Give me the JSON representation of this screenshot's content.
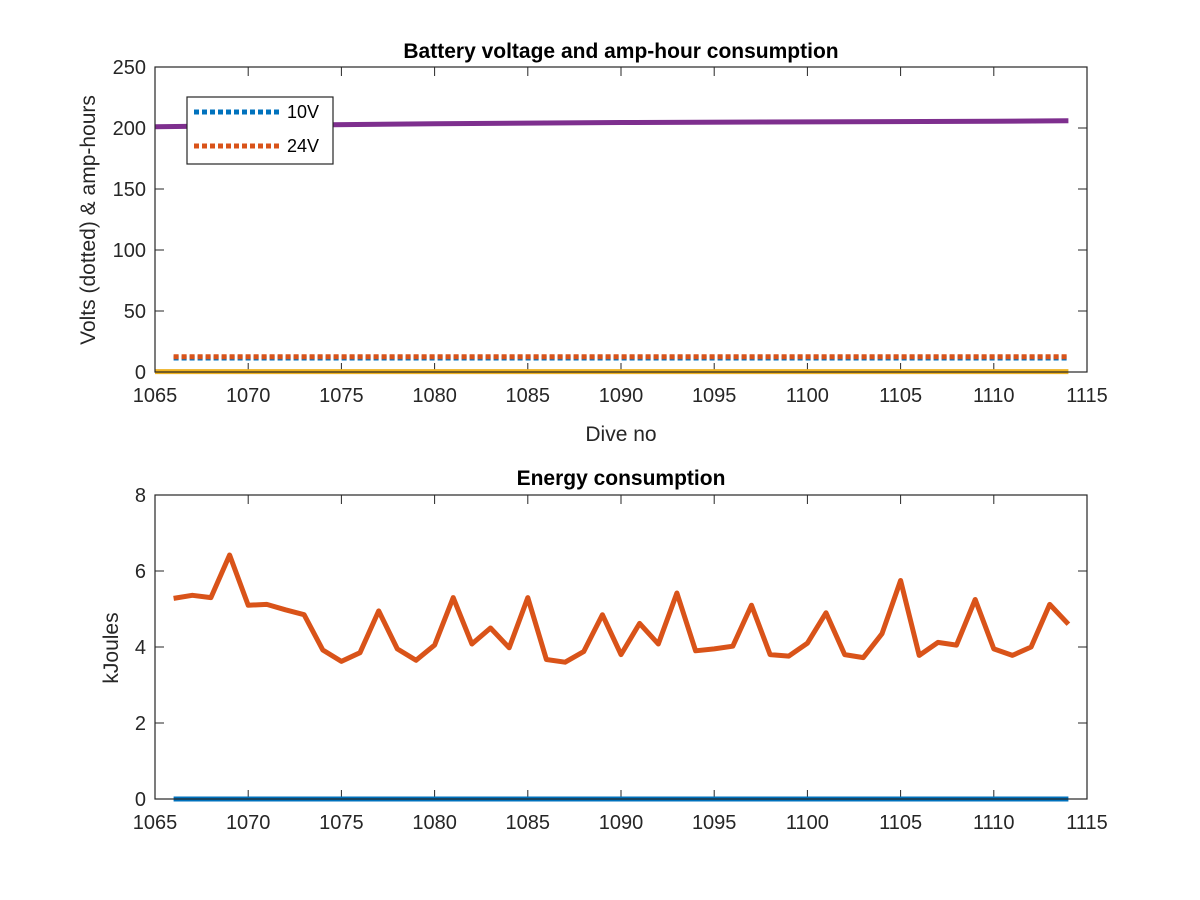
{
  "chart_data": [
    {
      "type": "line",
      "title": "Battery voltage and amp-hour consumption",
      "xlabel": "Dive no",
      "ylabel": "Volts (dotted) & amp-hours",
      "xlim": [
        1065,
        1115
      ],
      "ylim": [
        0,
        250
      ],
      "xticks": [
        1065,
        1070,
        1075,
        1080,
        1085,
        1090,
        1095,
        1100,
        1105,
        1110,
        1115
      ],
      "yticks": [
        0,
        50,
        100,
        150,
        200,
        250
      ],
      "legend": "top-left",
      "series": [
        {
          "name": "10V",
          "style": "dotted",
          "color": "#0072BD",
          "x": [
            1066,
            1114
          ],
          "y": [
            11.5,
            11.5
          ]
        },
        {
          "name": "24V",
          "style": "dotted",
          "color": "#D95319",
          "x": [
            1066,
            1114
          ],
          "y": [
            12.5,
            12.5
          ]
        },
        {
          "style": "solid",
          "color": "#7E2F8E",
          "x": [
            1065,
            1070,
            1080,
            1090,
            1100,
            1110,
            1114
          ],
          "y": [
            201,
            202,
            203.5,
            204.5,
            205,
            205.5,
            206
          ]
        },
        {
          "style": "solid",
          "color": "#EDB120",
          "x": [
            1065,
            1114
          ],
          "y": [
            0.3,
            0.3
          ]
        }
      ]
    },
    {
      "type": "line",
      "title": "Energy consumption",
      "xlabel": "",
      "ylabel": "kJoules",
      "xlim": [
        1065,
        1115
      ],
      "ylim": [
        0,
        8
      ],
      "xticks": [
        1065,
        1070,
        1075,
        1080,
        1085,
        1090,
        1095,
        1100,
        1105,
        1110,
        1115
      ],
      "yticks": [
        0,
        2,
        4,
        6,
        8
      ],
      "series": [
        {
          "style": "solid",
          "color": "#D95319",
          "x": [
            1066,
            1067,
            1068,
            1069,
            1070,
            1071,
            1072,
            1073,
            1074,
            1075,
            1076,
            1077,
            1078,
            1079,
            1080,
            1081,
            1082,
            1083,
            1084,
            1085,
            1086,
            1087,
            1088,
            1089,
            1090,
            1091,
            1092,
            1093,
            1094,
            1095,
            1096,
            1097,
            1098,
            1099,
            1100,
            1101,
            1102,
            1103,
            1104,
            1105,
            1106,
            1107,
            1108,
            1109,
            1110,
            1111,
            1112,
            1113,
            1114
          ],
          "y": [
            5.28,
            5.36,
            5.3,
            6.42,
            5.1,
            5.12,
            4.98,
            4.85,
            3.92,
            3.62,
            3.85,
            4.95,
            3.95,
            3.65,
            4.05,
            5.3,
            4.08,
            4.5,
            3.98,
            5.3,
            3.67,
            3.6,
            3.88,
            4.85,
            3.8,
            4.62,
            4.08,
            5.42,
            3.9,
            3.95,
            4.02,
            5.1,
            3.8,
            3.76,
            4.1,
            4.9,
            3.8,
            3.72,
            4.35,
            5.75,
            3.78,
            4.12,
            4.05,
            5.25,
            3.95,
            3.78,
            4.0,
            5.12,
            4.6
          ]
        },
        {
          "style": "solid",
          "color": "#0072BD",
          "x": [
            1066,
            1114
          ],
          "y": [
            0,
            0
          ]
        }
      ]
    }
  ]
}
